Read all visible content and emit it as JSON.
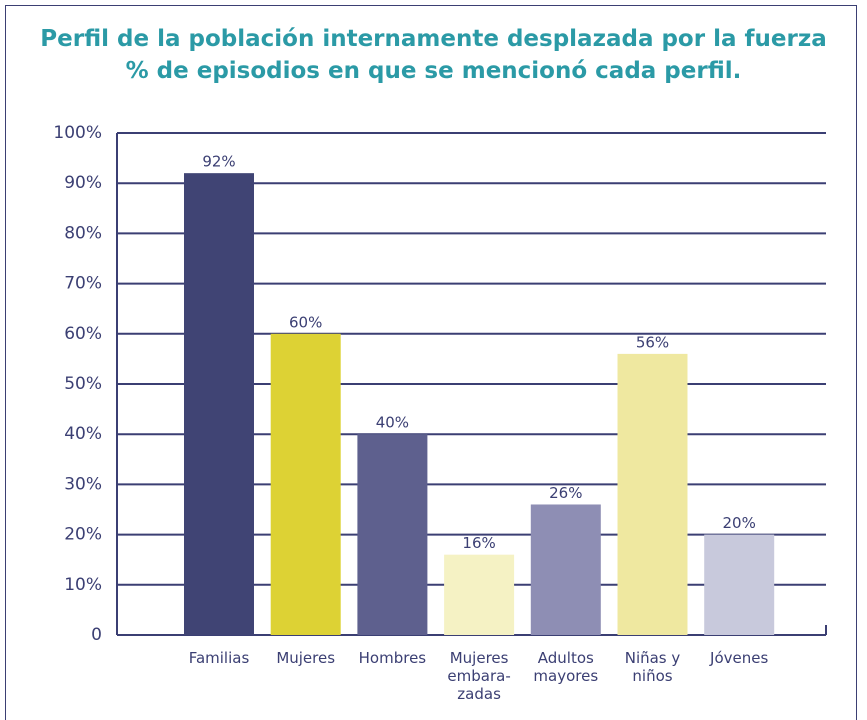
{
  "chart_data": {
    "type": "bar",
    "title": "Perfil de la población internamente desplazada por la fuerza",
    "subtitle": "% de episodios en que se mencionó cada perfil.",
    "categories": [
      "Familias",
      "Mujeres",
      "Hombres",
      "Mujeres\nembara-\nzadas",
      "Adultos\nmayores",
      "Niñas y\nniños",
      "Jóvenes"
    ],
    "values": [
      92,
      60,
      40,
      16,
      26,
      56,
      20
    ],
    "value_labels": [
      "92%",
      "60%",
      "40%",
      "16%",
      "26%",
      "56%",
      "20%"
    ],
    "colors": [
      "#404474",
      "#ddd234",
      "#5e608e",
      "#f5f2c4",
      "#8e8eb4",
      "#efe8a0",
      "#c8c9dc"
    ],
    "ylim": [
      0,
      100
    ],
    "yticks": [
      {
        "value": 0,
        "label": "0"
      },
      {
        "value": 10,
        "label": "10%"
      },
      {
        "value": 20,
        "label": "20%"
      },
      {
        "value": 30,
        "label": "30%"
      },
      {
        "value": 40,
        "label": "40%"
      },
      {
        "value": 50,
        "label": "50%"
      },
      {
        "value": 60,
        "label": "60%"
      },
      {
        "value": 70,
        "label": "70%"
      },
      {
        "value": 80,
        "label": "80%"
      },
      {
        "value": 90,
        "label": "90%"
      },
      {
        "value": 100,
        "label": "100%"
      }
    ],
    "grid": true
  }
}
